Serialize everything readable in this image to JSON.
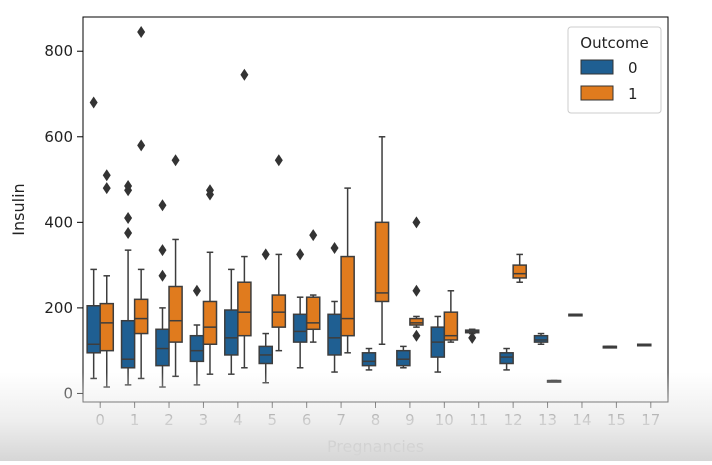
{
  "chart_data": {
    "type": "boxplot",
    "xlabel": "Pregnancies",
    "ylabel": "Insulin",
    "categories": [
      "0",
      "1",
      "2",
      "3",
      "4",
      "5",
      "6",
      "7",
      "8",
      "9",
      "10",
      "11",
      "12",
      "13",
      "14",
      "15",
      "17"
    ],
    "yticks": [
      0,
      200,
      400,
      600,
      800
    ],
    "ylim": [
      -20,
      880
    ],
    "legend": {
      "title": "Outcome",
      "position": "top-right",
      "entries": [
        "0",
        "1"
      ]
    },
    "series": [
      {
        "name": "0",
        "color": "#1f5f92",
        "boxes": [
          {
            "category": "0",
            "whisker_low": 35,
            "q1": 95,
            "median": 115,
            "q3": 205,
            "whisker_high": 290,
            "outliers": [
              680
            ]
          },
          {
            "category": "1",
            "whisker_low": 20,
            "q1": 60,
            "median": 80,
            "q3": 170,
            "whisker_high": 335,
            "outliers": [
              375,
              410,
              475,
              485
            ]
          },
          {
            "category": "2",
            "whisker_low": 15,
            "q1": 65,
            "median": 105,
            "q3": 150,
            "whisker_high": 200,
            "outliers": [
              275,
              335,
              440
            ]
          },
          {
            "category": "3",
            "whisker_low": 20,
            "q1": 75,
            "median": 100,
            "q3": 135,
            "whisker_high": 160,
            "outliers": [
              240
            ]
          },
          {
            "category": "4",
            "whisker_low": 45,
            "q1": 90,
            "median": 130,
            "q3": 195,
            "whisker_high": 290,
            "outliers": []
          },
          {
            "category": "5",
            "whisker_low": 25,
            "q1": 70,
            "median": 90,
            "q3": 110,
            "whisker_high": 140,
            "outliers": [
              325
            ]
          },
          {
            "category": "6",
            "whisker_low": 60,
            "q1": 120,
            "median": 145,
            "q3": 185,
            "whisker_high": 225,
            "outliers": [
              325
            ]
          },
          {
            "category": "7",
            "whisker_low": 50,
            "q1": 90,
            "median": 130,
            "q3": 185,
            "whisker_high": 215,
            "outliers": [
              340
            ]
          },
          {
            "category": "8",
            "whisker_low": 55,
            "q1": 65,
            "median": 75,
            "q3": 95,
            "whisker_high": 105,
            "outliers": []
          },
          {
            "category": "9",
            "whisker_low": 60,
            "q1": 65,
            "median": 80,
            "q3": 100,
            "whisker_high": 110,
            "outliers": []
          },
          {
            "category": "10",
            "whisker_low": 50,
            "q1": 85,
            "median": 120,
            "q3": 155,
            "whisker_high": 180,
            "outliers": []
          },
          {
            "category": "11",
            "whisker_low": 140,
            "q1": 142,
            "median": 145,
            "q3": 148,
            "whisker_high": 150,
            "outliers": [
              130
            ]
          },
          {
            "category": "12",
            "whisker_low": 55,
            "q1": 70,
            "median": 85,
            "q3": 95,
            "whisker_high": 105,
            "outliers": []
          },
          {
            "category": "13",
            "whisker_low": 115,
            "q1": 120,
            "median": 125,
            "q3": 135,
            "whisker_high": 140,
            "outliers": []
          },
          {
            "category": "14",
            "whisker_low": 185,
            "q1": 185,
            "median": 185,
            "q3": 185,
            "whisker_high": 185,
            "outliers": []
          },
          {
            "category": "15",
            "whisker_low": 110,
            "q1": 110,
            "median": 110,
            "q3": 110,
            "whisker_high": 110,
            "outliers": []
          },
          {
            "category": "17",
            "whisker_low": 115,
            "q1": 115,
            "median": 115,
            "q3": 115,
            "whisker_high": 115,
            "outliers": []
          }
        ]
      },
      {
        "name": "1",
        "color": "#e07b1e",
        "boxes": [
          {
            "category": "0",
            "whisker_low": 15,
            "q1": 100,
            "median": 165,
            "q3": 210,
            "whisker_high": 275,
            "outliers": [
              480,
              510
            ]
          },
          {
            "category": "1",
            "whisker_low": 35,
            "q1": 140,
            "median": 175,
            "q3": 220,
            "whisker_high": 290,
            "outliers": [
              580,
              845
            ]
          },
          {
            "category": "2",
            "whisker_low": 40,
            "q1": 120,
            "median": 170,
            "q3": 250,
            "whisker_high": 360,
            "outliers": [
              545
            ]
          },
          {
            "category": "3",
            "whisker_low": 45,
            "q1": 115,
            "median": 155,
            "q3": 215,
            "whisker_high": 330,
            "outliers": [
              465,
              475
            ]
          },
          {
            "category": "4",
            "whisker_low": 60,
            "q1": 135,
            "median": 190,
            "q3": 260,
            "whisker_high": 320,
            "outliers": [
              745
            ]
          },
          {
            "category": "5",
            "whisker_low": 100,
            "q1": 155,
            "median": 190,
            "q3": 230,
            "whisker_high": 325,
            "outliers": [
              545
            ]
          },
          {
            "category": "6",
            "whisker_low": 120,
            "q1": 150,
            "median": 165,
            "q3": 225,
            "whisker_high": 230,
            "outliers": [
              370
            ]
          },
          {
            "category": "7",
            "whisker_low": 95,
            "q1": 135,
            "median": 175,
            "q3": 320,
            "whisker_high": 480,
            "outliers": []
          },
          {
            "category": "8",
            "whisker_low": 115,
            "q1": 215,
            "median": 235,
            "q3": 400,
            "whisker_high": 600,
            "outliers": []
          },
          {
            "category": "9",
            "whisker_low": 155,
            "q1": 160,
            "median": 165,
            "q3": 175,
            "whisker_high": 180,
            "outliers": [
              135,
              240,
              400
            ]
          },
          {
            "category": "10",
            "whisker_low": 120,
            "q1": 125,
            "median": 135,
            "q3": 190,
            "whisker_high": 240,
            "outliers": []
          },
          {
            "category": "12",
            "whisker_low": 260,
            "q1": 270,
            "median": 280,
            "q3": 300,
            "whisker_high": 325,
            "outliers": []
          },
          {
            "category": "13",
            "whisker_low": 30,
            "q1": 30,
            "median": 30,
            "q3": 30,
            "whisker_high": 30,
            "outliers": []
          }
        ]
      }
    ]
  }
}
